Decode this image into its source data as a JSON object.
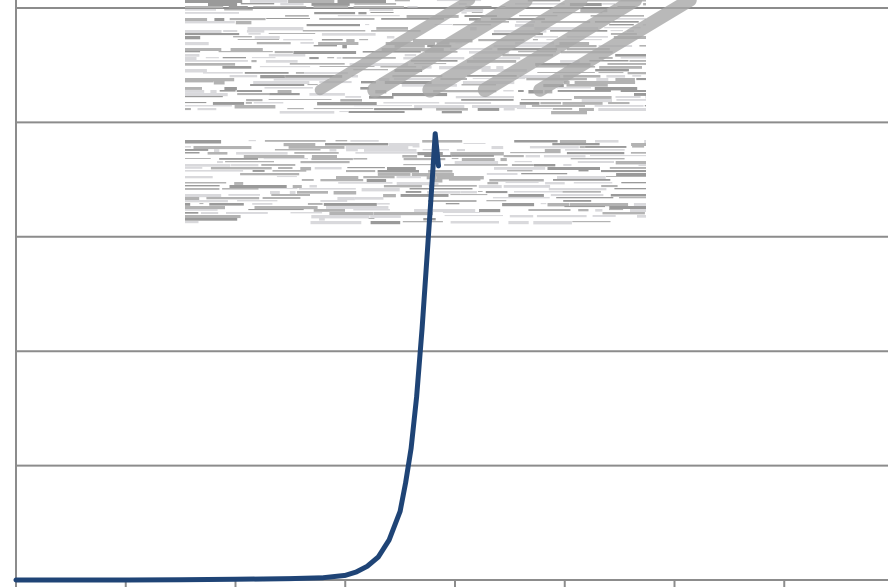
{
  "colors": {
    "series": "#1f4476",
    "grid": "#8c8c8c",
    "background": "#ffffff",
    "smudge": "#b3b3b3"
  },
  "chart_data": {
    "type": "line",
    "title": "",
    "xlabel": "",
    "ylabel": "",
    "xlim": [
      0,
      8
    ],
    "ylim": [
      0,
      5
    ],
    "grid": true,
    "legend": "none",
    "series": [
      {
        "x": [
          0,
          1,
          1.5,
          2,
          2.5,
          2.8,
          3.0,
          3.1,
          3.2,
          3.3,
          3.4,
          3.5,
          3.55,
          3.6,
          3.65,
          3.7,
          3.75,
          3.8,
          3.82,
          3.85
        ],
        "y": [
          0,
          0,
          0.003,
          0.006,
          0.012,
          0.02,
          0.04,
          0.07,
          0.12,
          0.2,
          0.35,
          0.6,
          0.85,
          1.15,
          1.6,
          2.2,
          2.9,
          3.6,
          3.9,
          3.62
        ]
      }
    ]
  }
}
